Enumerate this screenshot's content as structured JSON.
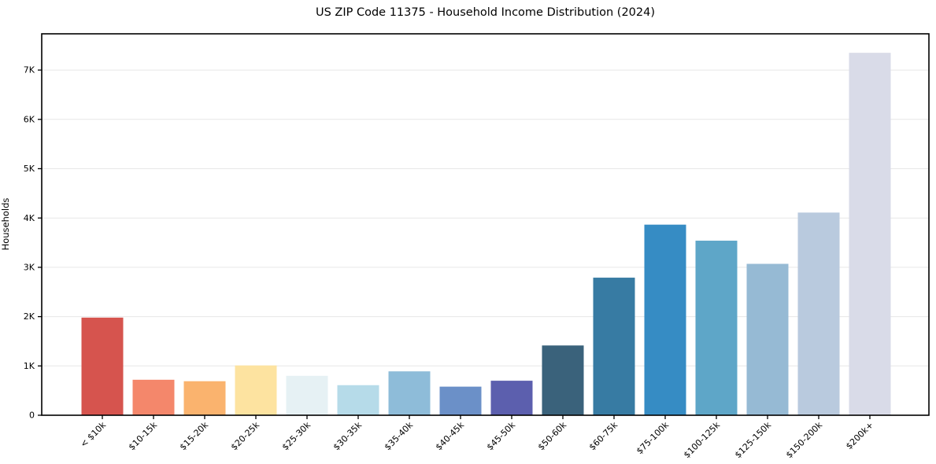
{
  "title": "US ZIP Code 11375 - Household Income Distribution (2024)",
  "chart_data": {
    "type": "bar",
    "title": "US ZIP Code 11375 - Household Income Distribution (2024)",
    "xlabel": "",
    "ylabel": "Households",
    "categories": [
      "< $10k",
      "$10-15k",
      "$15-20k",
      "$20-25k",
      "$25-30k",
      "$30-35k",
      "$35-40k",
      "$40-45k",
      "$45-50k",
      "$50-60k",
      "$60-75k",
      "$75-100k",
      "$100-125k",
      "$125-150k",
      "$150-200k",
      "$200k+"
    ],
    "values": [
      1980,
      720,
      690,
      1010,
      800,
      610,
      890,
      580,
      700,
      1415,
      2790,
      3865,
      3540,
      3070,
      4110,
      7350
    ],
    "bar_colors": [
      "#d6544e",
      "#f4876b",
      "#fab36e",
      "#fde3a0",
      "#e6f1f4",
      "#b6dbe9",
      "#8ebcd9",
      "#6b90c8",
      "#5c5fae",
      "#3a627b",
      "#377ba3",
      "#368cc4",
      "#5ea6c8",
      "#96bad4",
      "#b9cade",
      "#d9dbe8"
    ],
    "ylim": [
      0,
      7735
    ],
    "yticks": [
      0,
      1000,
      2000,
      3000,
      4000,
      5000,
      6000,
      7000
    ],
    "ytick_labels": [
      "0",
      "1K",
      "2K",
      "3K",
      "4K",
      "5K",
      "6K",
      "7K"
    ],
    "grid": "horizontal",
    "grid_color": "#e7e7e7",
    "spine_color": "#000000",
    "background": "#ffffff",
    "x_tick_rotation": 45,
    "legend": "none"
  }
}
